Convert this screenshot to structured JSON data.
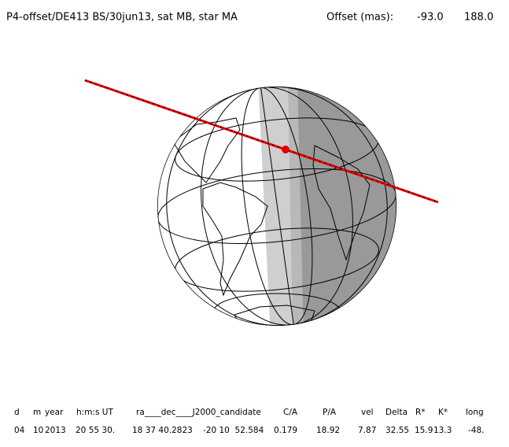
{
  "title": "P4-offset/DE413 BS/30jun13, sat MB, star MA",
  "offset": {
    "label": "Offset (mas):",
    "values": [
      "-93.0",
      "188.0"
    ]
  },
  "table": {
    "header": [
      "d",
      "m",
      "year",
      "h:m:s UT",
      "ra____dec____J2000_candidate",
      "C/A",
      "P/A",
      "vel",
      "Delta",
      "R*",
      "K*",
      "long"
    ],
    "rows": [
      [
        "04",
        "10",
        "2013",
        "20 55 30.",
        "18 37 40.2823",
        "-20 10  52.584",
        "0.179",
        "18.92",
        "7.87",
        "32.55",
        "15.9",
        "13.3",
        "-48."
      ]
    ]
  }
}
